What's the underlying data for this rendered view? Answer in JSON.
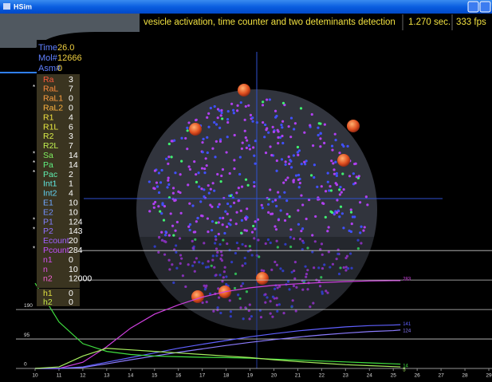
{
  "window": {
    "title": "HSim"
  },
  "header": {
    "caption": "vesicle activation, time counter and two deteminants detection",
    "time": "1.270 sec.",
    "fps": "333 fps"
  },
  "status": [
    {
      "label": "Time",
      "value": "26.0"
    },
    {
      "label": "Mol#",
      "value": 12666
    },
    {
      "label": "Asm#",
      "value": 0
    }
  ],
  "species": [
    {
      "name": "Ra",
      "value": 3,
      "color": "#ff5a3c"
    },
    {
      "marker": "*",
      "name": "RaL",
      "value": 7,
      "color": "#ff8c3c"
    },
    {
      "name": "RaL1",
      "value": 0,
      "color": "#ffa040"
    },
    {
      "name": "RaL2",
      "value": 0,
      "color": "#ffb440"
    },
    {
      "name": "R1",
      "value": 4,
      "color": "#f0e040"
    },
    {
      "name": "R1L",
      "value": 6,
      "color": "#e8e840"
    },
    {
      "name": "R2",
      "value": 3,
      "color": "#d8ec48"
    },
    {
      "name": "R2L",
      "value": 7,
      "color": "#c0f050"
    },
    {
      "marker": "*",
      "name": "Sa",
      "value": 14,
      "color": "#80f060"
    },
    {
      "marker": "*",
      "name": "Pa",
      "value": 14,
      "color": "#60f080"
    },
    {
      "marker": "*",
      "name": "Pac",
      "value": 2,
      "color": "#60f0b0"
    },
    {
      "name": "Int1",
      "value": 1,
      "color": "#60e8e0"
    },
    {
      "name": "Int2",
      "value": 4,
      "color": "#60d0f0"
    },
    {
      "name": "E1",
      "value": 10,
      "color": "#70a8ff"
    },
    {
      "name": "E2",
      "value": 10,
      "color": "#7090ff"
    },
    {
      "marker": "*",
      "name": "P1",
      "value": 124,
      "color": "#8080ff"
    },
    {
      "marker": "*",
      "name": "P2",
      "value": 143,
      "color": "#9070ff"
    },
    {
      "name": "Ecount",
      "value": 20,
      "color": "#a060ff"
    },
    {
      "marker": "*",
      "name": "Pcount",
      "value": 284,
      "color": "#c050ff"
    },
    {
      "name": "n1",
      "value": 0,
      "color": "#d050f0"
    },
    {
      "name": "n",
      "value": 10,
      "color": "#e050e0"
    },
    {
      "name": "n2",
      "value": 12000,
      "color": "#f060d0"
    }
  ],
  "flags": [
    {
      "name": "h1",
      "value": 0,
      "color": "#e0e040"
    },
    {
      "name": "h2",
      "value": 0,
      "color": "#c8e848"
    }
  ],
  "plot": {
    "type": "line",
    "xlim": [
      10,
      29
    ],
    "ylim": [
      0,
      1085
    ],
    "xticks": [
      10,
      11,
      12,
      13,
      14,
      15,
      16,
      17,
      18,
      19,
      20,
      21,
      22,
      23,
      24,
      25,
      26,
      27,
      28,
      29
    ],
    "yticks": [
      0,
      95,
      190
    ],
    "grid_values": [
      285,
      380
    ],
    "x": [
      10,
      11,
      12,
      13,
      14,
      15,
      16,
      17,
      18,
      19,
      20,
      21,
      22,
      23,
      24,
      25,
      25.3
    ],
    "series": [
      {
        "color": "#d040e0",
        "values": [
          0,
          0,
          20,
          70,
          130,
          175,
          205,
          230,
          248,
          260,
          268,
          273,
          277,
          280,
          282,
          283,
          283
        ]
      },
      {
        "color": "#6060ff",
        "values": [
          0,
          0,
          5,
          20,
          35,
          50,
          65,
          78,
          90,
          102,
          112,
          121,
          128,
          134,
          138,
          140,
          141
        ]
      },
      {
        "color": "#8c7cff",
        "values": [
          0,
          0,
          3,
          15,
          28,
          40,
          52,
          63,
          74,
          84,
          93,
          101,
          108,
          114,
          119,
          122,
          124
        ]
      },
      {
        "color": "#40e040",
        "values": [
          275,
          150,
          80,
          55,
          45,
          40,
          38,
          36,
          35,
          33,
          30,
          27,
          24,
          21,
          18,
          15,
          14
        ]
      },
      {
        "color": "#a8f060",
        "values": [
          0,
          5,
          40,
          65,
          60,
          55,
          50,
          45,
          40,
          35,
          28,
          22,
          17,
          12,
          9,
          6,
          5
        ]
      }
    ]
  }
}
